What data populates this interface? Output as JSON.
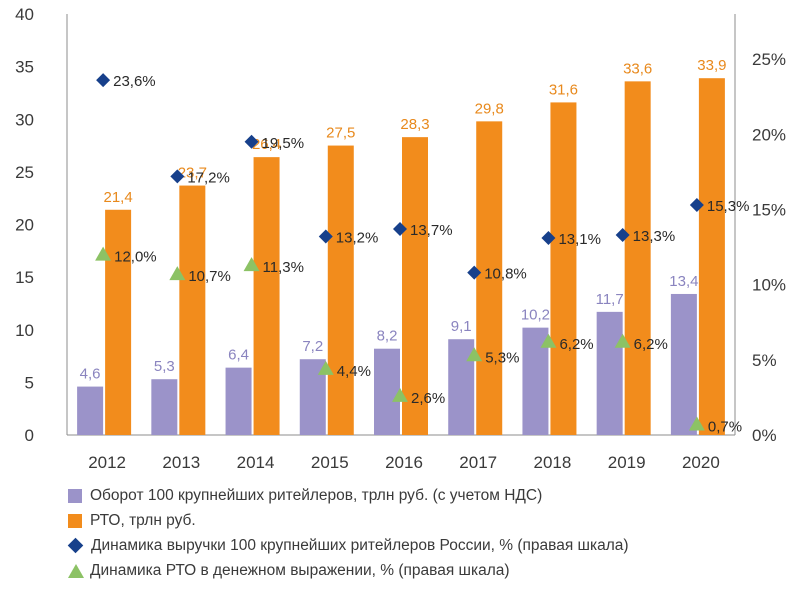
{
  "chart_data": {
    "type": "bar",
    "categories": [
      "2012",
      "2013",
      "2014",
      "2015",
      "2016",
      "2017",
      "2018",
      "2019",
      "2020"
    ],
    "left_axis": {
      "min": 0,
      "max": 40,
      "ticks": [
        "0",
        "5",
        "10",
        "15",
        "20",
        "25",
        "30",
        "35",
        "40"
      ]
    },
    "right_axis": {
      "min": 0,
      "max": 28,
      "ticks": [
        "0%",
        "5%",
        "10%",
        "15%",
        "20%",
        "25%"
      ]
    },
    "series": [
      {
        "name": "Оборот 100 крупнейших ритейлеров, трлн руб. (с учетом НДС)",
        "kind": "bar",
        "axis": "left",
        "color": "#9b93c9",
        "values": [
          4.6,
          5.3,
          6.4,
          7.2,
          8.2,
          9.1,
          10.2,
          11.7,
          13.4
        ],
        "labels": [
          "4,6",
          "5,3",
          "6,4",
          "7,2",
          "8,2",
          "9,1",
          "10,2",
          "11,7",
          "13,4"
        ],
        "label_color": "#8a84bf"
      },
      {
        "name": "РТО, трлн руб.",
        "kind": "bar",
        "axis": "left",
        "color": "#f28c1c",
        "values": [
          21.4,
          23.7,
          26.4,
          27.5,
          28.3,
          29.8,
          31.6,
          33.6,
          33.9
        ],
        "labels": [
          "21,4",
          "23,7",
          "26,4",
          "27,5",
          "28,3",
          "29,8",
          "31,6",
          "33,6",
          "33,9"
        ],
        "label_color": "#e8891c"
      },
      {
        "name": "Динамика выручки 100 крупнейших ритейлеров России, % (правая шкала)",
        "kind": "diamond",
        "axis": "right",
        "color": "#17408b",
        "values": [
          23.6,
          17.2,
          19.5,
          13.2,
          13.7,
          10.8,
          13.1,
          13.3,
          15.3
        ],
        "labels": [
          "23,6%",
          "17,2%",
          "19,5%",
          "13,2%",
          "13,7%",
          "10,8%",
          "13,1%",
          "13,3%",
          "15,3%"
        ]
      },
      {
        "name": "Динамика РТО в денежном выражении, % (правая шкала)",
        "kind": "triangle",
        "axis": "right",
        "color": "#8cc265",
        "values": [
          12.0,
          10.7,
          11.3,
          4.4,
          2.6,
          5.3,
          6.2,
          6.2,
          0.7
        ],
        "labels": [
          "12,0%",
          "10,7%",
          "11,3%",
          "4,4%",
          "2,6%",
          "5,3%",
          "6,2%",
          "6,2%",
          "0,7%"
        ]
      }
    ],
    "grid": false,
    "legend_position": "bottom"
  }
}
